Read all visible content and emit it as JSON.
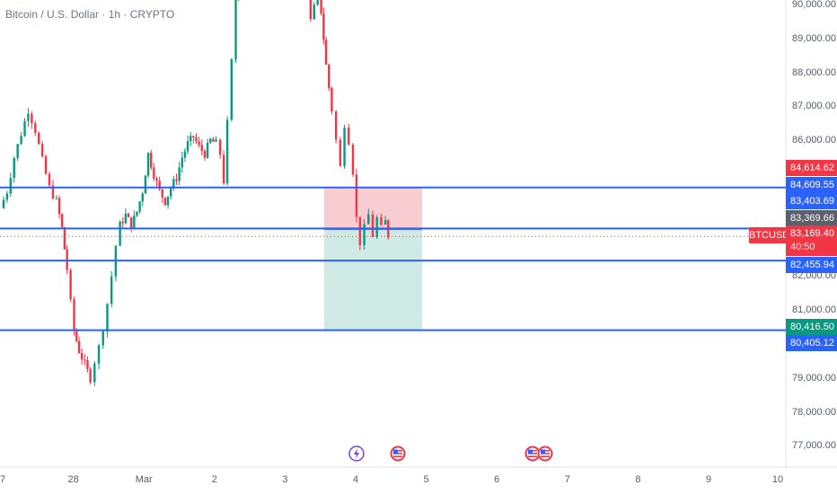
{
  "header": {
    "title": "Bitcoin / U.S. Dollar · 1h · CRYPTO"
  },
  "price_axis": {
    "ticks": [
      "90,000.00",
      "89,000.00",
      "88,000.00",
      "87,000.00",
      "86,000.00",
      "82,000.00",
      "81,000.00",
      "79,000.00",
      "78,000.00",
      "77,000.00"
    ]
  },
  "time_axis": {
    "labels": [
      "7",
      "28",
      "Mar",
      "2",
      "3",
      "4",
      "5",
      "6",
      "7",
      "8",
      "9",
      "10"
    ]
  },
  "price_tags": {
    "tag1": "84,614.62",
    "tag2": "84,609.55",
    "tag3": "83,403.69",
    "tag4": "83,369.66",
    "tag5": "83,169.40",
    "tag5_countdown": "40:50",
    "tag6": "82,455.94",
    "tag7": "80,416.50",
    "tag8": "80,405.12"
  },
  "ticker": {
    "symbol": "BTCUSD"
  },
  "horizontal_lines": [
    84609.55,
    83403.69,
    82455.94,
    80405.12
  ],
  "position_tool": {
    "entry": 83369.66,
    "stop": 84614.62,
    "target": 80416.5,
    "start_time": 4.59,
    "end_time": 5.98
  },
  "events": [
    {
      "icon": "lightning-event-icon",
      "time": 5.05
    },
    {
      "icon": "us-flag-event-icon",
      "time": 5.63
    },
    {
      "icon": "us-flag-event-icon",
      "time": 7.55
    },
    {
      "icon": "us-flag-event-icon",
      "time": 7.72
    }
  ],
  "colors": {
    "up": "#089981",
    "down": "#f23645",
    "line": "#2962ff",
    "stop_zone": "#f7cdd2",
    "target_zone": "#cfe9e4",
    "scale_red": "#f23645",
    "scale_blue": "#2962ff",
    "scale_gray": "#5d606b",
    "scale_green": "#089981"
  },
  "chart_data": {
    "type": "candlestick",
    "x_unit": "day index (27 Feb = 0, 28 Feb = 1, Mar 1 = 2, … Mar 10 = 11)",
    "ylim": [
      76400,
      90250
    ],
    "xlim": [
      0.0,
      11.0
    ],
    "candle_points": [
      [
        0.0,
        84000
      ],
      [
        0.1,
        84500
      ],
      [
        0.2,
        85500
      ],
      [
        0.3,
        86200
      ],
      [
        0.4,
        86900
      ],
      [
        0.5,
        86300
      ],
      [
        0.6,
        85400
      ],
      [
        0.7,
        84600
      ],
      [
        0.8,
        84200
      ],
      [
        0.88,
        83400
      ],
      [
        0.95,
        82200
      ],
      [
        1.0,
        81200
      ],
      [
        1.05,
        80400
      ],
      [
        1.12,
        79800
      ],
      [
        1.2,
        79400
      ],
      [
        1.28,
        79000
      ],
      [
        1.34,
        79500
      ],
      [
        1.4,
        79900
      ],
      [
        1.46,
        80500
      ],
      [
        1.52,
        81200
      ],
      [
        1.58,
        82000
      ],
      [
        1.64,
        82900
      ],
      [
        1.7,
        83500
      ],
      [
        1.78,
        83800
      ],
      [
        1.86,
        83500
      ],
      [
        1.94,
        83900
      ],
      [
        2.02,
        84500
      ],
      [
        2.1,
        85600
      ],
      [
        2.18,
        85000
      ],
      [
        2.26,
        84500
      ],
      [
        2.34,
        84200
      ],
      [
        2.42,
        84600
      ],
      [
        2.5,
        84900
      ],
      [
        2.58,
        85500
      ],
      [
        2.66,
        85900
      ],
      [
        2.74,
        86100
      ],
      [
        2.82,
        85800
      ],
      [
        2.9,
        85600
      ],
      [
        2.98,
        86000
      ],
      [
        3.06,
        85900
      ],
      [
        3.12,
        85600
      ],
      [
        3.17,
        84800
      ],
      [
        3.22,
        86500
      ],
      [
        3.28,
        88300
      ],
      [
        3.34,
        90200
      ],
      [
        3.42,
        90700
      ],
      [
        3.6,
        90900
      ],
      [
        4.35,
        90400
      ],
      [
        4.4,
        89500
      ],
      [
        4.45,
        89900
      ],
      [
        4.5,
        90300
      ],
      [
        4.55,
        89800
      ],
      [
        4.62,
        88200
      ],
      [
        4.7,
        86900
      ],
      [
        4.76,
        86000
      ],
      [
        4.82,
        85200
      ],
      [
        4.88,
        86500
      ],
      [
        4.94,
        86000
      ],
      [
        5.0,
        85100
      ],
      [
        5.05,
        83700
      ],
      [
        5.1,
        83000
      ],
      [
        5.16,
        83400
      ],
      [
        5.22,
        83800
      ],
      [
        5.28,
        83200
      ],
      [
        5.34,
        83700
      ],
      [
        5.4,
        83400
      ],
      [
        5.46,
        83600
      ],
      [
        5.5,
        83200
      ]
    ]
  }
}
